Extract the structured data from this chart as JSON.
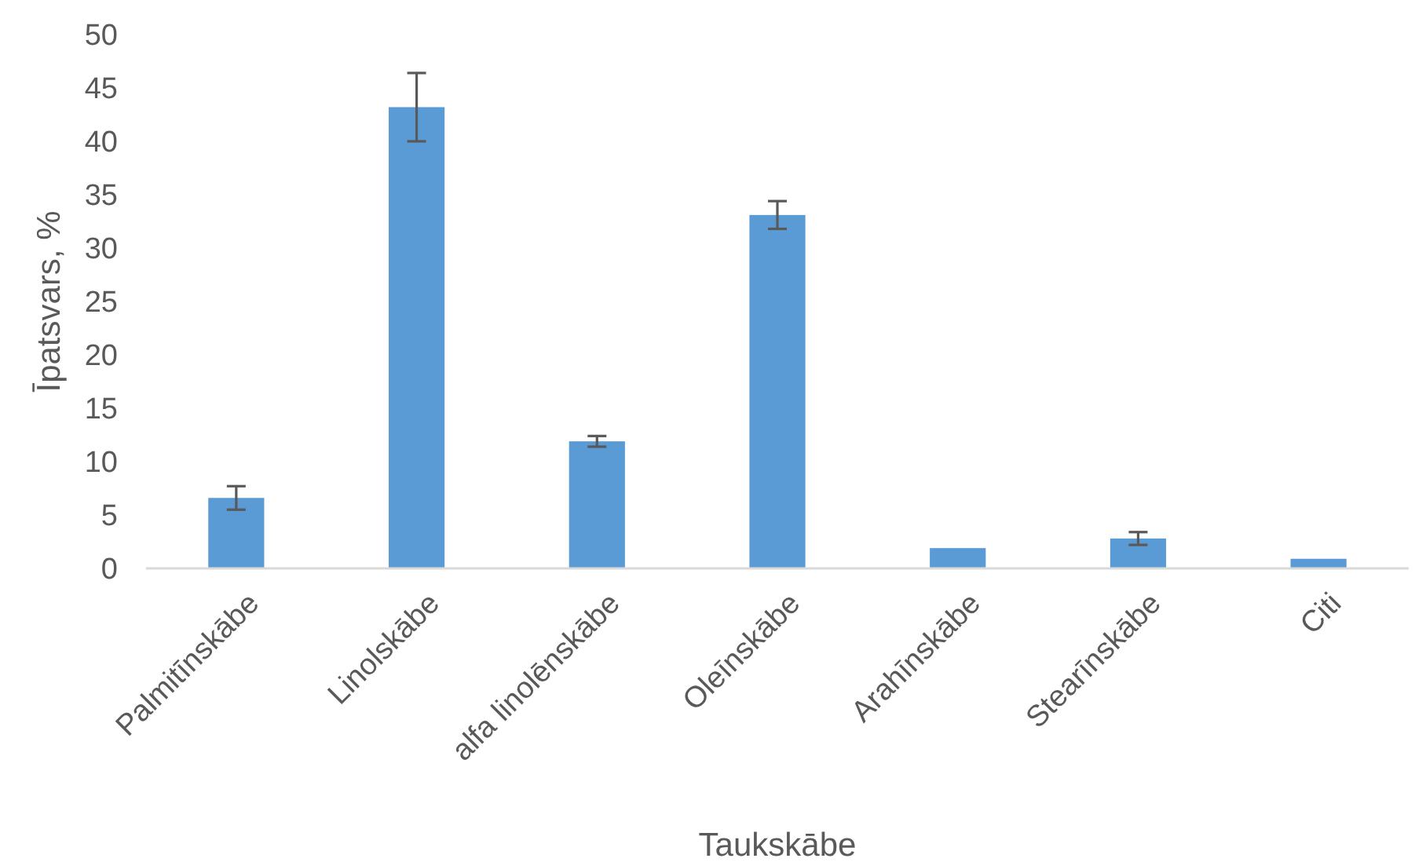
{
  "chart_data": {
    "type": "bar",
    "xlabel": "Taukskābe",
    "ylabel": "Īpatsvars, %",
    "categories": [
      "Palmitīnskābe",
      "Linolskābe",
      "alfa linolēnskābe",
      "Oleīnskābe",
      "Arahīnskābe",
      "Stearīnskābe",
      "Citi"
    ],
    "values": [
      6.6,
      43.2,
      11.9,
      33.1,
      1.9,
      2.8,
      0.9
    ],
    "errors": [
      1.1,
      3.2,
      0.5,
      1.3,
      null,
      0.6,
      null
    ],
    "color": "#5b9bd5",
    "ylim": [
      0,
      50
    ],
    "yticks": [
      0,
      5,
      10,
      15,
      20,
      25,
      30,
      35,
      40,
      45,
      50
    ],
    "grid": false
  }
}
